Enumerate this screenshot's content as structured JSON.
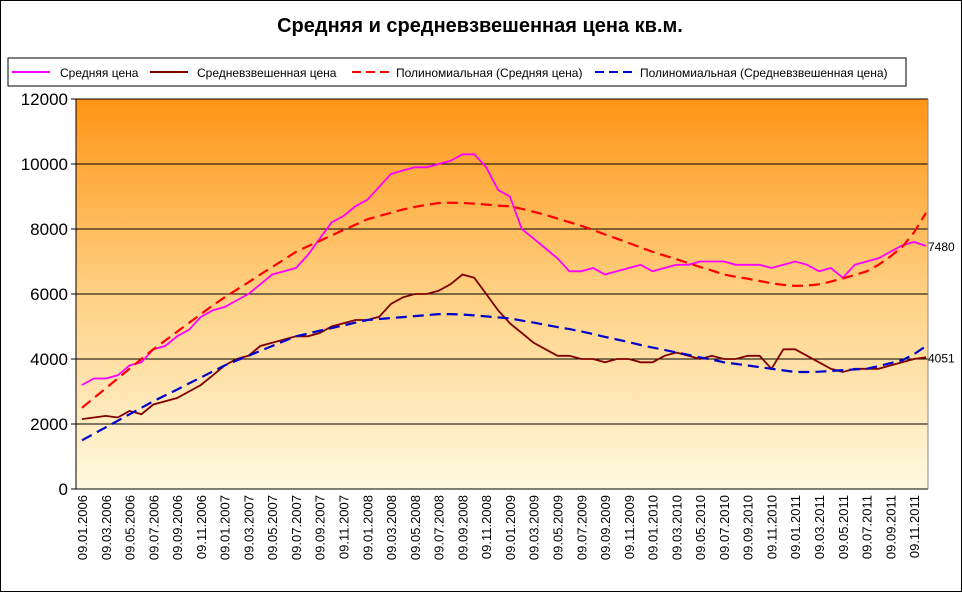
{
  "chart_data": {
    "type": "line",
    "title": "Средняя и средневзвешенная цена кв.м.",
    "categories": [
      "09.01.2006",
      null,
      "09.03.2006",
      null,
      "09.05.2006",
      null,
      "09.07.2006",
      null,
      "09.09.2006",
      null,
      "09.11.2006",
      null,
      "09.01.2007",
      null,
      "09.03.2007",
      null,
      "09.05.2007",
      null,
      "09.07.2007",
      null,
      "09.09.2007",
      null,
      "09.11.2007",
      null,
      "09.01.2008",
      null,
      "09.03.2008",
      null,
      "09.05.2008",
      null,
      "09.07.2008",
      null,
      "09.09.2008",
      null,
      "09.11.2008",
      null,
      "09.01.2009",
      null,
      "09.03.2009",
      null,
      "09.05.2009",
      null,
      "09.07.2009",
      null,
      "09.09.2009",
      null,
      "09.11.2009",
      null,
      "09.01.2010",
      null,
      "09.03.2010",
      null,
      "09.05.2010",
      null,
      "09.07.2010",
      null,
      "09.09.2010",
      null,
      "09.11.2010",
      null,
      "09.01.2011",
      null,
      "09.03.2011",
      null,
      "09.05.2011",
      null,
      "09.07.2011",
      null,
      "09.09.2011",
      null,
      "09.11.2011",
      null
    ],
    "series": [
      {
        "name": "Средняя цена",
        "color": "#ff00ff",
        "dashed": false,
        "label_last": true,
        "values": [
          3200,
          3400,
          3400,
          3500,
          3800,
          3900,
          4300,
          4400,
          4700,
          4900,
          5300,
          5500,
          5600,
          5800,
          6000,
          6300,
          6600,
          6700,
          6800,
          7200,
          7700,
          8200,
          8400,
          8700,
          8900,
          9300,
          9700,
          9800,
          9900,
          9900,
          10000,
          10100,
          10300,
          10300,
          9900,
          9200,
          9000,
          8000,
          7700,
          7400,
          7100,
          6700,
          6700,
          6800,
          6600,
          6700,
          6800,
          6900,
          6700,
          6800,
          6900,
          6900,
          7000,
          7000,
          7000,
          6900,
          6900,
          6900,
          6800,
          6900,
          7000,
          6900,
          6700,
          6800,
          6500,
          6900,
          7000,
          7100,
          7300,
          7500,
          7600,
          7480
        ]
      },
      {
        "name": "Средневзвешенная цена",
        "color": "#800000",
        "dashed": false,
        "label_last": true,
        "values": [
          2150,
          2200,
          2250,
          2200,
          2400,
          2300,
          2600,
          2700,
          2800,
          3000,
          3200,
          3500,
          3800,
          4000,
          4100,
          4400,
          4500,
          4600,
          4700,
          4700,
          4800,
          5000,
          5100,
          5200,
          5200,
          5300,
          5700,
          5900,
          6000,
          6000,
          6100,
          6300,
          6600,
          6500,
          6000,
          5500,
          5100,
          4800,
          4500,
          4300,
          4100,
          4100,
          4000,
          4000,
          3900,
          4000,
          4000,
          3900,
          3900,
          4100,
          4200,
          4100,
          4000,
          4100,
          4000,
          4000,
          4100,
          4100,
          3700,
          4300,
          4300,
          4100,
          3900,
          3700,
          3600,
          3700,
          3700,
          3700,
          3800,
          3900,
          4000,
          4051
        ]
      },
      {
        "name": "Полиномиальная (Средняя цена)",
        "color": "#ff0000",
        "dashed": true,
        "label_last": false,
        "values": [
          2500,
          2800,
          3100,
          3400,
          3700,
          4000,
          4300,
          4570,
          4840,
          5110,
          5380,
          5650,
          5900,
          6130,
          6360,
          6600,
          6830,
          7060,
          7300,
          7470,
          7630,
          7800,
          7970,
          8130,
          8300,
          8400,
          8500,
          8600,
          8680,
          8740,
          8800,
          8810,
          8800,
          8780,
          8750,
          8720,
          8700,
          8620,
          8530,
          8430,
          8320,
          8210,
          8100,
          7970,
          7830,
          7700,
          7570,
          7430,
          7300,
          7180,
          7070,
          6950,
          6830,
          6720,
          6600,
          6530,
          6470,
          6400,
          6330,
          6280,
          6250,
          6260,
          6300,
          6380,
          6480,
          6580,
          6700,
          6900,
          7150,
          7450,
          7900,
          8500
        ]
      },
      {
        "name": "Полиномиальная (Средневзвешенная цена)",
        "color": "#0000cc",
        "dashed": true,
        "label_last": false,
        "values": [
          1500,
          1700,
          1900,
          2100,
          2300,
          2500,
          2700,
          2880,
          3060,
          3250,
          3430,
          3620,
          3800,
          3950,
          4100,
          4250,
          4400,
          4550,
          4700,
          4780,
          4870,
          4950,
          5030,
          5120,
          5200,
          5230,
          5260,
          5290,
          5320,
          5350,
          5380,
          5380,
          5370,
          5340,
          5310,
          5280,
          5250,
          5180,
          5120,
          5050,
          4980,
          4920,
          4850,
          4770,
          4680,
          4600,
          4520,
          4430,
          4350,
          4280,
          4200,
          4130,
          4050,
          3980,
          3900,
          3850,
          3800,
          3750,
          3700,
          3650,
          3600,
          3600,
          3610,
          3630,
          3660,
          3680,
          3700,
          3780,
          3870,
          3960,
          4150,
          4400
        ]
      }
    ],
    "ylim": [
      0,
      12000
    ],
    "yticks": [
      0,
      2000,
      4000,
      6000,
      8000,
      10000,
      12000
    ],
    "grid": true,
    "legend": "top"
  }
}
